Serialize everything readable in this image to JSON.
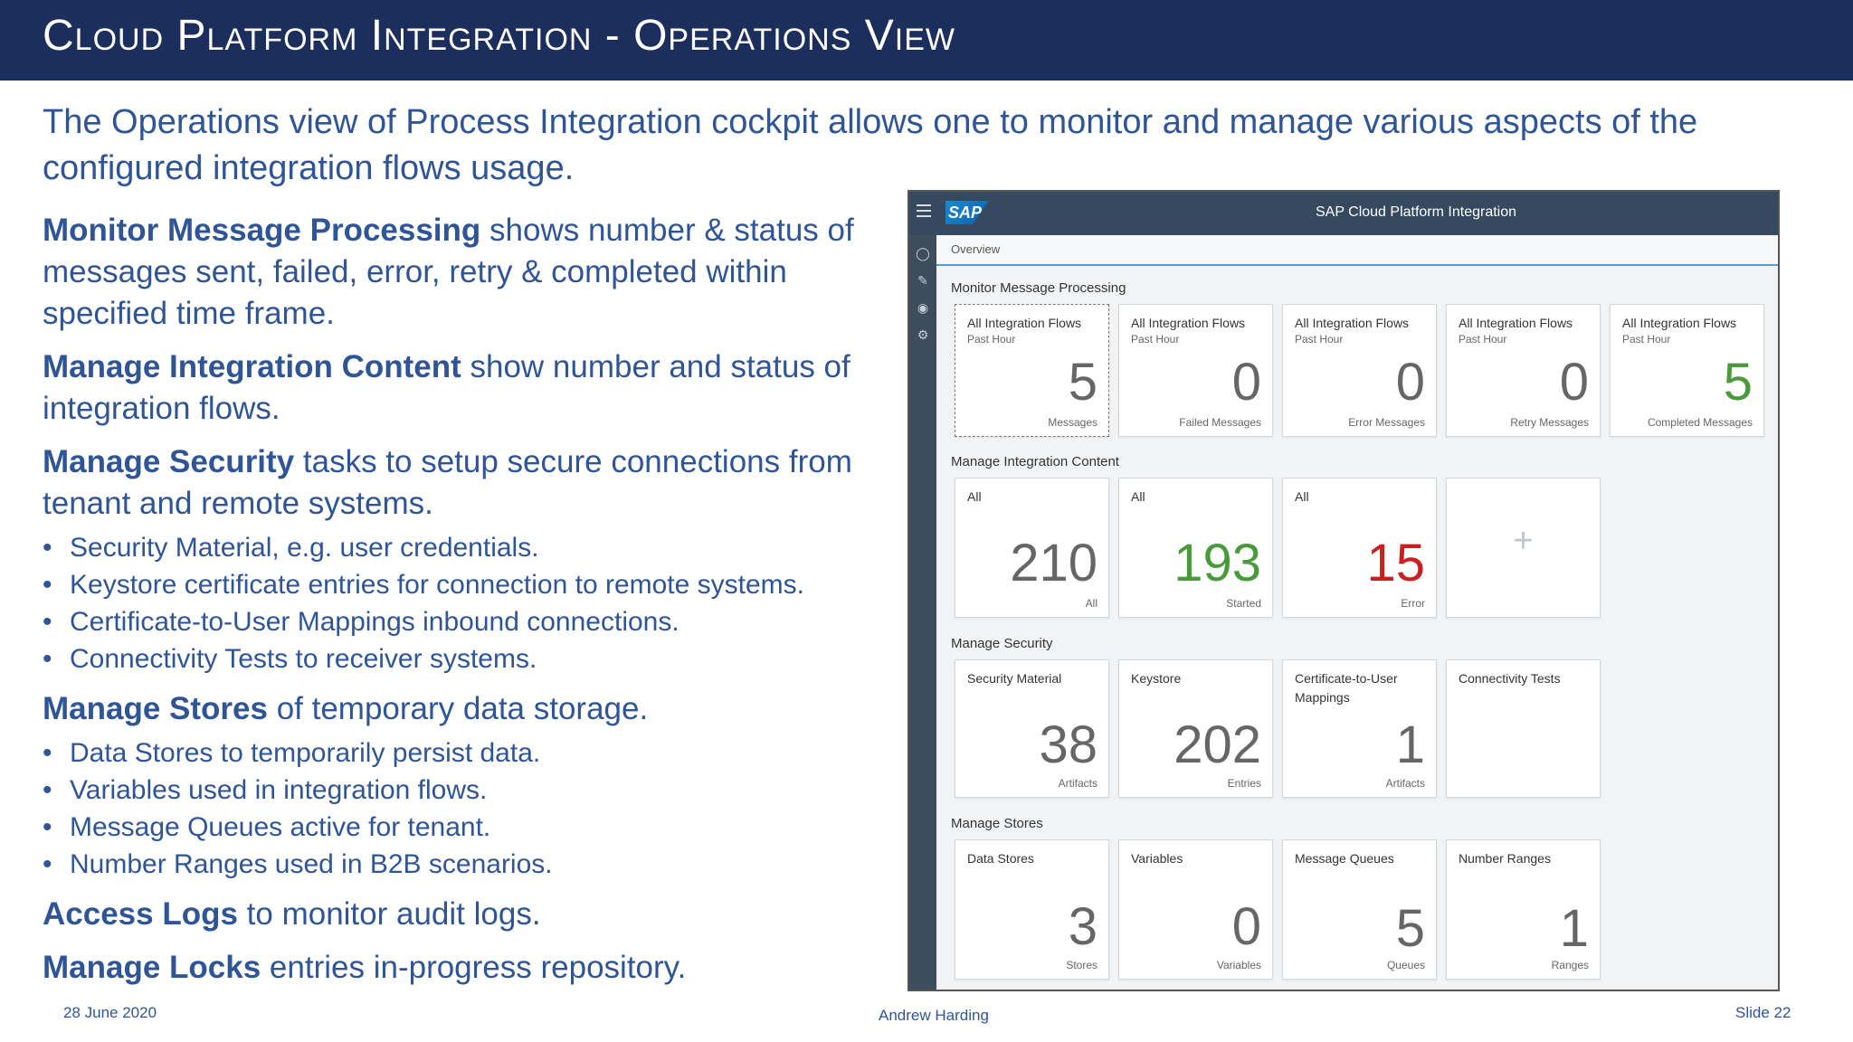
{
  "slide": {
    "title": "Cloud Platform Integration - Operations View",
    "intro": "The Operations view of Process Integration cockpit allows one to monitor and manage various aspects of the configured integration flows usage.",
    "paragraphs": [
      {
        "bold": "Monitor Message Processing",
        "rest": " shows number & status of messages sent, failed, error, retry & completed within specified time frame."
      },
      {
        "bold": "Manage Integration Content",
        "rest": " show number and status of integration flows."
      },
      {
        "bold": "Manage Security",
        "rest": " tasks to setup secure connections from tenant and remote systems."
      },
      {
        "bold": "Manage Stores",
        "rest": " of temporary data storage."
      },
      {
        "bold": "Access Logs",
        "rest": " to monitor audit logs."
      },
      {
        "bold": "Manage Locks",
        "rest": " entries in-progress repository."
      }
    ],
    "security_bullets": [
      "Security Material, e.g. user credentials.",
      "Keystore certificate entries for connection to remote systems.",
      "Certificate-to-User Mappings inbound connections.",
      "Connectivity Tests to receiver systems."
    ],
    "stores_bullets": [
      "Data Stores to temporarily persist data.",
      "Variables used in integration flows.",
      "Message Queues active for tenant.",
      "Number Ranges used in B2B scenarios."
    ],
    "footer": {
      "date": "28 June 2020",
      "author": "Andrew Harding",
      "slide_number": "Slide 22"
    }
  },
  "screenshot": {
    "logo_text": "SAP",
    "app_title": "SAP Cloud Platform Integration",
    "breadcrumb": "Overview",
    "sections": {
      "monitor": "Monitor Message Processing",
      "content": "Manage Integration Content",
      "security": "Manage Security",
      "stores": "Manage Stores"
    },
    "monitor_tiles": [
      {
        "title": "All Integration Flows",
        "sub": "Past Hour",
        "value": "5",
        "unit": "Messages"
      },
      {
        "title": "All Integration Flows",
        "sub": "Past Hour",
        "value": "0",
        "unit": "Failed Messages"
      },
      {
        "title": "All Integration Flows",
        "sub": "Past Hour",
        "value": "0",
        "unit": "Error Messages"
      },
      {
        "title": "All Integration Flows",
        "sub": "Past Hour",
        "value": "0",
        "unit": "Retry Messages"
      },
      {
        "title": "All Integration Flows",
        "sub": "Past Hour",
        "value": "5",
        "unit": "Completed Messages"
      }
    ],
    "content_tiles": [
      {
        "title": "All",
        "value": "210",
        "unit": "All"
      },
      {
        "title": "All",
        "value": "193",
        "unit": "Started"
      },
      {
        "title": "All",
        "value": "15",
        "unit": "Error"
      }
    ],
    "add_tile_symbol": "+",
    "security_tiles": [
      {
        "title": "Security Material",
        "value": "38",
        "unit": "Artifacts"
      },
      {
        "title": "Keystore",
        "value": "202",
        "unit": "Entries"
      },
      {
        "title": "Certificate-to-User Mappings",
        "value": "1",
        "unit": "Artifacts"
      },
      {
        "title": "Connectivity Tests",
        "value": "",
        "unit": ""
      }
    ],
    "stores_tiles": [
      {
        "title": "Data Stores",
        "value": "3",
        "unit": "Stores"
      },
      {
        "title": "Variables",
        "value": "0",
        "unit": "Variables"
      },
      {
        "title": "Message Queues",
        "value": "5",
        "unit": "Queues"
      },
      {
        "title": "Number Ranges",
        "value": "1",
        "unit": "Ranges"
      }
    ],
    "colors": {
      "positive": "#4a9a3c",
      "negative": "#cc1f1f",
      "neutral": "#666666"
    }
  }
}
